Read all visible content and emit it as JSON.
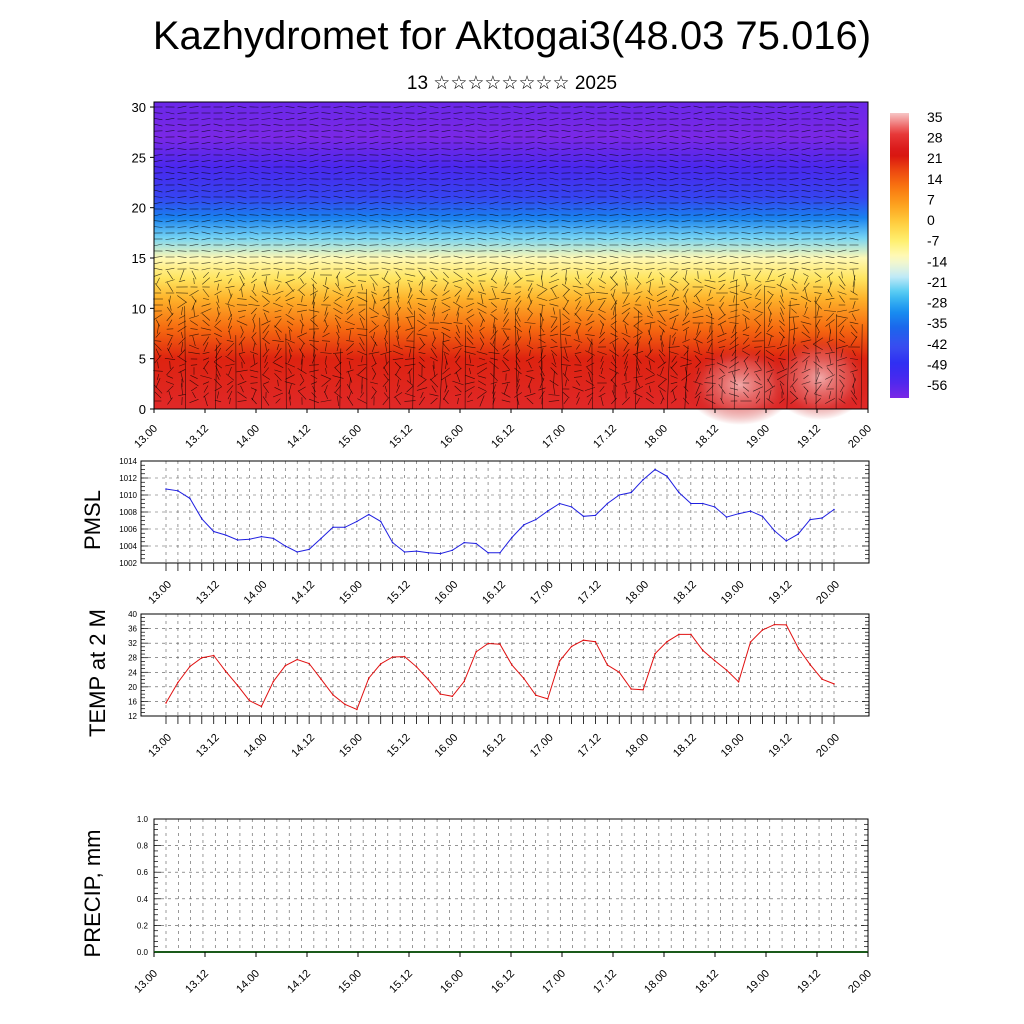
{
  "title": "Kazhydromet for Aktogai3(48.03 75.016)",
  "subtitle": "13 ☆☆☆☆☆☆☆☆ 2025",
  "x_tick_labels": [
    "13.00",
    "13.12",
    "14.00",
    "14.12",
    "15.00",
    "15.12",
    "16.00",
    "16.12",
    "17.00",
    "17.12",
    "18.00",
    "18.12",
    "19.00",
    "19.12",
    "20.00"
  ],
  "colors": {
    "pmsl_line": "#1f1fe0",
    "temp_line": "#e01010",
    "grid": "#555555"
  },
  "chart_data": [
    {
      "type": "heatmap",
      "name": "cross-section",
      "y_tick_labels": [
        "0",
        "5",
        "10",
        "15",
        "20",
        "25",
        "30"
      ],
      "ylim": [
        0,
        30.5
      ],
      "colorbar_labels": [
        "35",
        "28",
        "21",
        "14",
        "7",
        "0",
        "-7",
        "-14",
        "-21",
        "-28",
        "-35",
        "-42",
        "-49",
        "-56"
      ],
      "colorbar_range": [
        -60,
        38
      ],
      "profile_levels": [
        0,
        5,
        8,
        11,
        13,
        15,
        17,
        19,
        21,
        24,
        27,
        30.5
      ],
      "profile_values": [
        28,
        22,
        14,
        4,
        -4,
        -11,
        -22,
        -32,
        -44,
        -54,
        -60,
        -58
      ],
      "grid": true
    },
    {
      "type": "line",
      "ylabel": "PMSL",
      "y_tick_labels": [
        "1002",
        "1004",
        "1006",
        "1008",
        "1010",
        "1012",
        "1014"
      ],
      "ylim": [
        1002,
        1014
      ],
      "x": [
        "13.00",
        "13.03",
        "13.06",
        "13.09",
        "13.12",
        "13.15",
        "13.18",
        "13.21",
        "14.00",
        "14.03",
        "14.06",
        "14.09",
        "14.12",
        "14.15",
        "14.18",
        "14.21",
        "15.00",
        "15.03",
        "15.06",
        "15.09",
        "15.12",
        "15.15",
        "15.18",
        "15.21",
        "16.00",
        "16.03",
        "16.06",
        "16.09",
        "16.12",
        "16.15",
        "16.18",
        "16.21",
        "17.00",
        "17.03",
        "17.06",
        "17.09",
        "17.12",
        "17.15",
        "17.18",
        "17.21",
        "18.00",
        "18.03",
        "18.06",
        "18.09",
        "18.12",
        "18.15",
        "18.18",
        "18.21",
        "19.00",
        "19.03",
        "19.06",
        "19.09",
        "19.12",
        "19.15",
        "19.18",
        "19.21",
        "20.00"
      ],
      "series": [
        {
          "values": [
            1010.7,
            1010.5,
            1009.6,
            1007.2,
            1005.7,
            1005.3,
            1004.7,
            1004.8,
            1005.1,
            1004.9,
            1004.0,
            1003.3,
            1003.6,
            1004.9,
            1006.2,
            1006.2,
            1006.9,
            1007.7,
            1006.9,
            1004.4,
            1003.3,
            1003.4,
            1003.2,
            1003.1,
            1003.5,
            1004.4,
            1004.3,
            1003.2,
            1003.2,
            1005.0,
            1006.5,
            1007.1,
            1008.1,
            1009.0,
            1008.6,
            1007.5,
            1007.6,
            1009.0,
            1010.0,
            1010.3,
            1011.8,
            1013.0,
            1012.2,
            1010.3,
            1009.0,
            1009.0,
            1008.6,
            1007.4,
            1007.8,
            1008.1,
            1007.5,
            1005.8,
            1004.6,
            1005.4,
            1007.1,
            1007.3,
            1008.3
          ]
        }
      ],
      "grid": true
    },
    {
      "type": "line",
      "ylabel": "TEMP at 2 M",
      "y_tick_labels": [
        "12",
        "16",
        "20",
        "24",
        "28",
        "32",
        "36",
        "40"
      ],
      "ylim": [
        12,
        40
      ],
      "x": [
        "13.00",
        "13.03",
        "13.06",
        "13.09",
        "13.12",
        "13.15",
        "13.18",
        "13.21",
        "14.00",
        "14.03",
        "14.06",
        "14.09",
        "14.12",
        "14.15",
        "14.18",
        "14.21",
        "15.00",
        "15.03",
        "15.06",
        "15.09",
        "15.12",
        "15.15",
        "15.18",
        "15.21",
        "16.00",
        "16.03",
        "16.06",
        "16.09",
        "16.12",
        "16.15",
        "16.18",
        "16.21",
        "17.00",
        "17.03",
        "17.06",
        "17.09",
        "17.12",
        "17.15",
        "17.18",
        "17.21",
        "18.00",
        "18.03",
        "18.06",
        "18.09",
        "18.12",
        "18.15",
        "18.18",
        "18.21",
        "19.00",
        "19.03",
        "19.06",
        "19.09",
        "19.12",
        "19.15",
        "19.18",
        "19.21",
        "20.00"
      ],
      "series": [
        {
          "values": [
            15.6,
            21.2,
            25.6,
            28.0,
            28.6,
            24.3,
            20.4,
            16.2,
            14.6,
            21.5,
            25.8,
            27.5,
            26.4,
            22.1,
            17.8,
            15.2,
            13.8,
            22.4,
            26.3,
            28.2,
            28.3,
            25.5,
            22.0,
            18.0,
            17.4,
            21.5,
            29.6,
            31.9,
            31.7,
            26.0,
            22.3,
            17.7,
            16.7,
            27.1,
            31.1,
            32.8,
            32.4,
            26.0,
            24.0,
            19.4,
            19.2,
            29.1,
            32.4,
            34.4,
            34.4,
            30.0,
            27.2,
            24.6,
            21.4,
            32.3,
            35.6,
            37.1,
            37.0,
            30.7,
            26.1,
            22.1,
            20.8
          ]
        }
      ],
      "grid": true
    },
    {
      "type": "bar",
      "ylabel": "PRECIP, mm",
      "y_tick_labels": [
        "0.0",
        "0.2",
        "0.4",
        "0.6",
        "0.8",
        "1.0"
      ],
      "ylim": [
        0,
        1.0
      ],
      "values": [
        0,
        0,
        0,
        0,
        0,
        0,
        0,
        0,
        0,
        0,
        0,
        0,
        0,
        0,
        0,
        0,
        0,
        0,
        0,
        0,
        0,
        0,
        0,
        0,
        0,
        0,
        0,
        0,
        0,
        0,
        0,
        0,
        0,
        0,
        0,
        0,
        0,
        0,
        0,
        0,
        0,
        0,
        0,
        0,
        0,
        0,
        0,
        0,
        0,
        0,
        0,
        0,
        0,
        0,
        0,
        0,
        0
      ],
      "grid": true
    }
  ]
}
